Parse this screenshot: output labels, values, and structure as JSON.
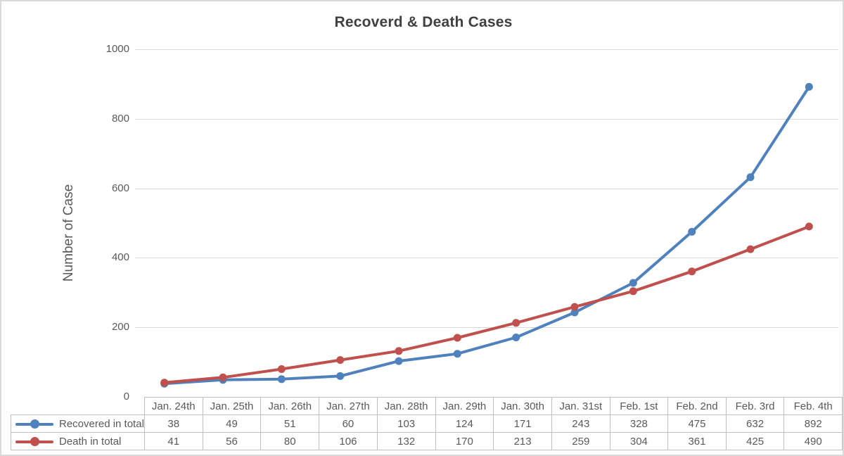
{
  "title": "Recoverd & Death Cases",
  "y_axis_title": "Number of Case",
  "colors": {
    "recovered": "#4F81BD",
    "death": "#C0504D",
    "gridline": "#D9D9D9",
    "table_border": "#BFBFBF",
    "axis_text": "#595959",
    "title_text": "#404040"
  },
  "chart_data": {
    "type": "line",
    "title": "Recoverd & Death Cases",
    "ylabel": "Number of Case",
    "xlabel": "",
    "categories": [
      "Jan. 24th",
      "Jan. 25th",
      "Jan. 26th",
      "Jan. 27th",
      "Jan. 28th",
      "Jan. 29th",
      "Jan. 30th",
      "Jan. 31st",
      "Feb. 1st",
      "Feb. 2nd",
      "Feb. 3rd",
      "Feb. 4th"
    ],
    "series": [
      {
        "name": "Recovered in total",
        "color": "#4F81BD",
        "marker": "circle",
        "values": [
          38,
          49,
          51,
          60,
          103,
          124,
          171,
          243,
          328,
          475,
          632,
          892
        ]
      },
      {
        "name": "Death in total",
        "color": "#C0504D",
        "marker": "circle",
        "values": [
          41,
          56,
          80,
          106,
          132,
          170,
          213,
          259,
          304,
          361,
          425,
          490
        ]
      }
    ],
    "ylim": [
      0,
      1000
    ],
    "yticks": [
      0,
      200,
      400,
      600,
      800,
      1000
    ],
    "grid": "horizontal-only",
    "legend_position": "data-table-left",
    "data_table_shown": true
  }
}
